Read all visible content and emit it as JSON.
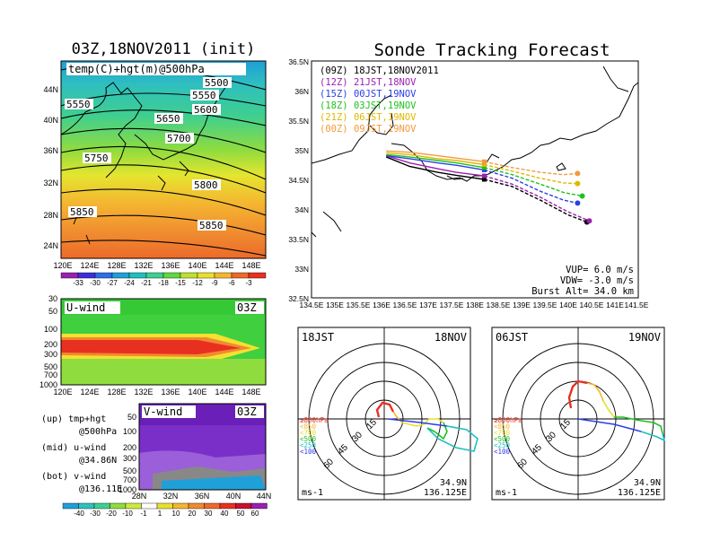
{
  "left_top": {
    "title": "03Z,18NOV2011 (init)",
    "label": "temp(C)+hgt(m)@500hPa",
    "lat_ticks": [
      "44N",
      "40N",
      "36N",
      "32N",
      "28N",
      "24N"
    ],
    "lon_ticks": [
      "120E",
      "124E",
      "128E",
      "132E",
      "136E",
      "140E",
      "144E",
      "148E"
    ],
    "contours": [
      "5500",
      "5550",
      "5550",
      "5600",
      "5650",
      "5700",
      "5750",
      "5800",
      "5850",
      "5850"
    ],
    "colorbar_ticks": [
      "-33",
      "-30",
      "-27",
      "-24",
      "-21",
      "-18",
      "-15",
      "-12",
      "-9",
      "-6",
      "-3"
    ]
  },
  "u_panel": {
    "label": "U-wind",
    "time": "03Z",
    "p_ticks": [
      "30",
      "50",
      "100",
      "200",
      "300",
      "500",
      "700",
      "1000"
    ],
    "lon_ticks": [
      "120E",
      "124E",
      "128E",
      "132E",
      "136E",
      "140E",
      "144E",
      "148E"
    ]
  },
  "v_panel": {
    "label": "V-wind",
    "time": "03Z",
    "p_ticks": [
      "50",
      "100",
      "200",
      "300",
      "500",
      "700",
      "1000"
    ],
    "lat_ticks": [
      "28N",
      "32N",
      "36N",
      "40N",
      "44N"
    ]
  },
  "notes": [
    "(up) tmp+hgt",
    "@500hPa",
    "(mid) u-wind",
    "@34.86N",
    "(bot) v-wind",
    "@136.11E"
  ],
  "wind_colorbar_ticks": [
    "-40",
    "-30",
    "-20",
    "-10",
    "-1",
    "1",
    "10",
    "20",
    "30",
    "40",
    "50",
    "60"
  ],
  "tracking": {
    "title": "Sonde Tracking Forecast",
    "legend": [
      {
        "code": "(09Z)",
        "text": "18JST,18NOV2011",
        "color": "#000000"
      },
      {
        "code": "(12Z)",
        "text": "21JST,18NOV",
        "color": "#9b1fb0"
      },
      {
        "code": "(15Z)",
        "text": "00JST,19NOV",
        "color": "#2b3ee8"
      },
      {
        "code": "(18Z)",
        "text": "03JST,19NOV",
        "color": "#1fc11f"
      },
      {
        "code": "(21Z)",
        "text": "06JST,19NOV",
        "color": "#e0b800"
      },
      {
        "code": "(00Z)",
        "text": "09JST,19NOV",
        "color": "#f39a3c"
      }
    ],
    "params": [
      "VUP= 6.0 m/s",
      "VDW= -3.0 m/s",
      "Burst Alt= 34.0 km"
    ],
    "lat_ticks": [
      "36.5N",
      "36N",
      "35.5N",
      "35N",
      "34.5N",
      "34N",
      "33.5N",
      "33N",
      "32.5N"
    ],
    "lon_ticks": [
      "134.5E",
      "135E",
      "135.5E",
      "136E",
      "136.5E",
      "137E",
      "137.5E",
      "138E",
      "138.5E",
      "139E",
      "139.5E",
      "140E",
      "140.5E",
      "141E",
      "141.5E"
    ]
  },
  "hodo_left": {
    "time": "18JST",
    "date": "18NOV",
    "ring_labels": [
      "15",
      "30",
      "45",
      "60"
    ],
    "unit": "ms-1",
    "lat": "34.9N",
    "lon": "136.125E",
    "levels": [
      "≥850hPa",
      "<850",
      "<700",
      "<500",
      "<250",
      "<100"
    ]
  },
  "hodo_right": {
    "time": "06JST",
    "date": "19NOV",
    "ring_labels": [
      "15",
      "30",
      "45",
      "60"
    ],
    "unit": "ms-1",
    "lat": "34.9N",
    "lon": "136.125E",
    "levels": [
      "≥850hPa",
      "<850",
      "<700",
      "<500",
      "<250",
      "<100"
    ]
  },
  "chart_data": [
    {
      "type": "heatmap",
      "title": "03Z,18NOV2011 (init)",
      "label": "temp(C)+hgt(m)@500hPa",
      "xlim": [
        120,
        150
      ],
      "ylim": [
        22,
        48
      ],
      "contour_values": [
        5500,
        5550,
        5600,
        5650,
        5700,
        5750,
        5800,
        5850
      ],
      "colorbar": [
        -33,
        -30,
        -27,
        -24,
        -21,
        -18,
        -15,
        -12,
        -9,
        -6,
        -3
      ]
    },
    {
      "type": "line",
      "title": "Sonde Tracking Forecast",
      "xlim": [
        134.5,
        141.5
      ],
      "ylim": [
        32.5,
        36.5
      ],
      "series": [
        {
          "name": "(09Z) 18JST,18NOV2011",
          "x": [
            136.1,
            136.6,
            137.2,
            137.6,
            138.2,
            138.8,
            139.4,
            140.0,
            140.4
          ],
          "y": [
            34.88,
            34.72,
            34.62,
            34.57,
            34.5,
            34.38,
            34.15,
            33.9,
            33.78
          ]
        },
        {
          "name": "(12Z) 21JST,18NOV",
          "x": [
            136.1,
            136.6,
            137.2,
            137.6,
            138.2,
            138.8,
            139.4,
            140.0,
            140.45
          ],
          "y": [
            34.9,
            34.78,
            34.68,
            34.62,
            34.56,
            34.42,
            34.2,
            33.95,
            33.8
          ]
        },
        {
          "name": "(15Z) 00JST,19NOV",
          "x": [
            136.1,
            136.6,
            137.2,
            137.6,
            138.2,
            138.8,
            139.4,
            139.9,
            140.2
          ],
          "y": [
            34.9,
            34.85,
            34.78,
            34.74,
            34.66,
            34.52,
            34.3,
            34.15,
            34.1
          ]
        },
        {
          "name": "(18Z) 03JST,19NOV",
          "x": [
            136.1,
            136.6,
            137.2,
            137.6,
            138.2,
            138.8,
            139.4,
            139.9,
            140.3
          ],
          "y": [
            34.92,
            34.88,
            34.82,
            34.78,
            34.7,
            34.58,
            34.42,
            34.28,
            34.22
          ]
        },
        {
          "name": "(21Z) 06JST,19NOV",
          "x": [
            136.1,
            136.6,
            137.2,
            137.6,
            138.2,
            138.8,
            139.4,
            139.9,
            140.2
          ],
          "y": [
            34.95,
            34.92,
            34.85,
            34.82,
            34.75,
            34.64,
            34.52,
            34.44,
            34.43
          ]
        },
        {
          "name": "(00Z) 09JST,19NOV",
          "x": [
            136.1,
            136.6,
            137.2,
            137.6,
            138.2,
            138.8,
            139.4,
            139.9,
            140.2
          ],
          "y": [
            34.98,
            34.96,
            34.9,
            34.86,
            34.8,
            34.7,
            34.62,
            34.58,
            34.6
          ]
        }
      ]
    }
  ]
}
